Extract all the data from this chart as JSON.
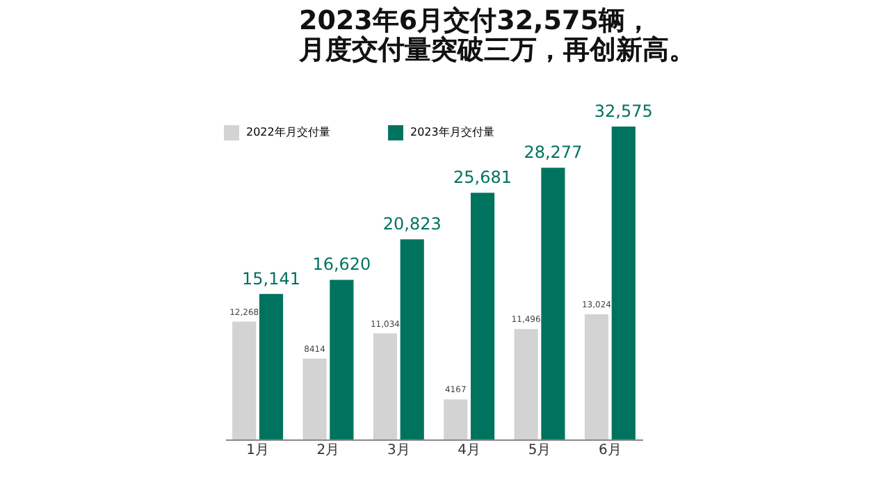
{
  "chart_data": {
    "type": "bar",
    "title": "2023年6月交付32,575辆，",
    "subtitle": "月度交付量突破三万，再创新高。",
    "categories": [
      "1月",
      "2月",
      "3月",
      "4月",
      "5月",
      "6月"
    ],
    "series": [
      {
        "name": "2022年月交付量",
        "color": "#d3d3d3",
        "values": [
          12268,
          8414,
          11034,
          4167,
          11496,
          13024
        ],
        "value_labels": [
          "12,268",
          "8414",
          "11,034",
          "4167",
          "11,496",
          "13,024"
        ]
      },
      {
        "name": "2023年月交付量",
        "color": "#00735f",
        "values": [
          15141,
          16620,
          20823,
          25681,
          28277,
          32575
        ],
        "value_labels": [
          "15,141",
          "16,620",
          "20,823",
          "25,681",
          "28,277",
          "32,575"
        ]
      }
    ],
    "legend": "top left",
    "grid": false
  }
}
